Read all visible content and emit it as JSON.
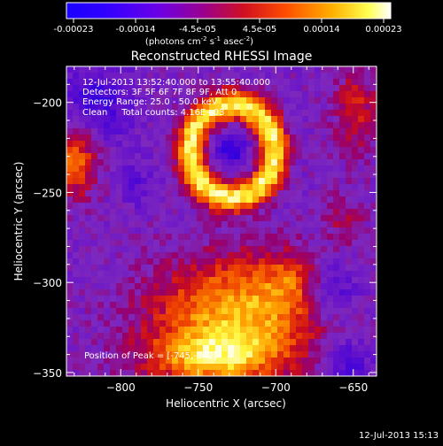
{
  "colorbar": {
    "ticks": [
      "-0.00023",
      "-0.00014",
      "-4.5e-05",
      "4.5e-05",
      "0.00014",
      "0.00023"
    ],
    "units_main": "(photons cm",
    "units_sup1": "-2",
    "units_mid1": " s",
    "units_sup2": "-1",
    "units_mid2": " asec",
    "units_sup3": "-2",
    "units_end": ")"
  },
  "info_lines": [
    "12-Jul-2013 13:52:40.000 to 13:55:40.000",
    "Detectors: 3F 5F 6F 7F 8F 9F, Att 0",
    "Energy Range: 25.0 - 50.0 keV",
    "Clean     Total counts: 4.16E+03"
  ],
  "peak_label": "Position of Peak = [-745,-342]",
  "footer_timestamp": "12-Jul-2013 15:13",
  "chart_data": {
    "type": "heatmap",
    "title": "Reconstructed RHESSI Image",
    "xlabel": "Heliocentric X (arcsec)",
    "ylabel": "Heliocentric Y (arcsec)",
    "xlim": [
      -835,
      -635
    ],
    "ylim": [
      -352,
      -180
    ],
    "xticks": [
      -800,
      -750,
      -700,
      -650
    ],
    "yticks": [
      -200,
      -250,
      -300,
      -350
    ],
    "xtick_labels": [
      "−800",
      "−750",
      "−700",
      "−650"
    ],
    "ytick_labels": [
      "−200",
      "−250",
      "−300",
      "−350"
    ],
    "colormap": "blue-purple-red-yellow-white",
    "value_range": [
      -0.00023,
      0.00023
    ],
    "peak_position": [
      -745,
      -342
    ]
  }
}
